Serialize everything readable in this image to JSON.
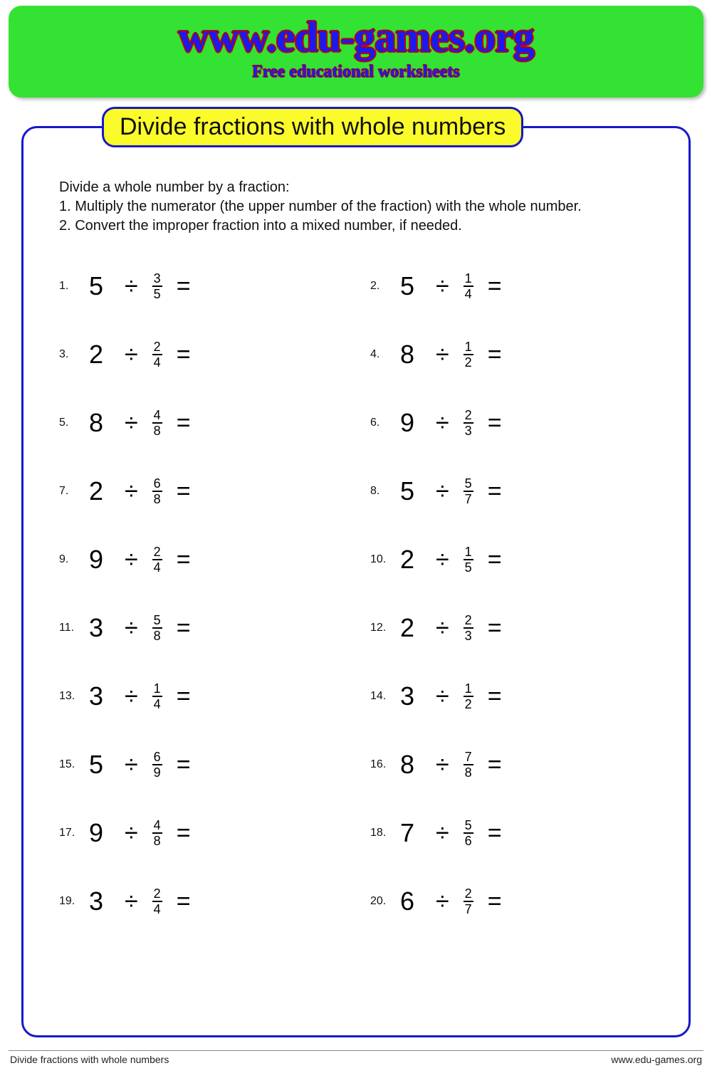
{
  "banner": {
    "title": "www.edu-games.org",
    "subtitle": "Free educational worksheets"
  },
  "sheet": {
    "title": "Divide fractions with whole numbers",
    "instructions_lead": "Divide a whole number by a fraction:",
    "instructions_step1": "1. Multiply the numerator (the upper number of the fraction) with the whole number.",
    "instructions_step2": "2. Convert the improper fraction into a mixed number, if needed."
  },
  "problems": [
    {
      "n": "1.",
      "whole": "5",
      "num": "3",
      "den": "5"
    },
    {
      "n": "2.",
      "whole": "5",
      "num": "1",
      "den": "4"
    },
    {
      "n": "3.",
      "whole": "2",
      "num": "2",
      "den": "4"
    },
    {
      "n": "4.",
      "whole": "8",
      "num": "1",
      "den": "2"
    },
    {
      "n": "5.",
      "whole": "8",
      "num": "4",
      "den": "8"
    },
    {
      "n": "6.",
      "whole": "9",
      "num": "2",
      "den": "3"
    },
    {
      "n": "7.",
      "whole": "2",
      "num": "6",
      "den": "8"
    },
    {
      "n": "8.",
      "whole": "5",
      "num": "5",
      "den": "7"
    },
    {
      "n": "9.",
      "whole": "9",
      "num": "2",
      "den": "4"
    },
    {
      "n": "10.",
      "whole": "2",
      "num": "1",
      "den": "5"
    },
    {
      "n": "11.",
      "whole": "3",
      "num": "5",
      "den": "8"
    },
    {
      "n": "12.",
      "whole": "2",
      "num": "2",
      "den": "3"
    },
    {
      "n": "13.",
      "whole": "3",
      "num": "1",
      "den": "4"
    },
    {
      "n": "14.",
      "whole": "3",
      "num": "1",
      "den": "2"
    },
    {
      "n": "15.",
      "whole": "5",
      "num": "6",
      "den": "9"
    },
    {
      "n": "16.",
      "whole": "8",
      "num": "7",
      "den": "8"
    },
    {
      "n": "17.",
      "whole": "9",
      "num": "4",
      "den": "8"
    },
    {
      "n": "18.",
      "whole": "7",
      "num": "5",
      "den": "6"
    },
    {
      "n": "19.",
      "whole": "3",
      "num": "2",
      "den": "4"
    },
    {
      "n": "20.",
      "whole": "6",
      "num": "2",
      "den": "7"
    }
  ],
  "symbols": {
    "divide": "÷",
    "equals": "="
  },
  "footer": {
    "left": "Divide fractions with whole numbers",
    "right": "www.edu-games.org"
  },
  "style": {
    "banner_bg": "#33e233",
    "banner_title_color": "#1a1af0",
    "banner_outline_color": "#c00000",
    "sheet_border_color": "#1818c8",
    "sheet_title_bg": "#fbfb2b",
    "text_color": "#111111",
    "page_bg": "#ffffff",
    "banner_title_fontsize": 60,
    "banner_sub_fontsize": 24,
    "sheet_title_fontsize": 34,
    "instructions_fontsize": 20,
    "whole_fontsize": 36,
    "op_fontsize": 34,
    "frac_fontsize": 18,
    "pnum_fontsize": 16,
    "footer_fontsize": 14
  }
}
